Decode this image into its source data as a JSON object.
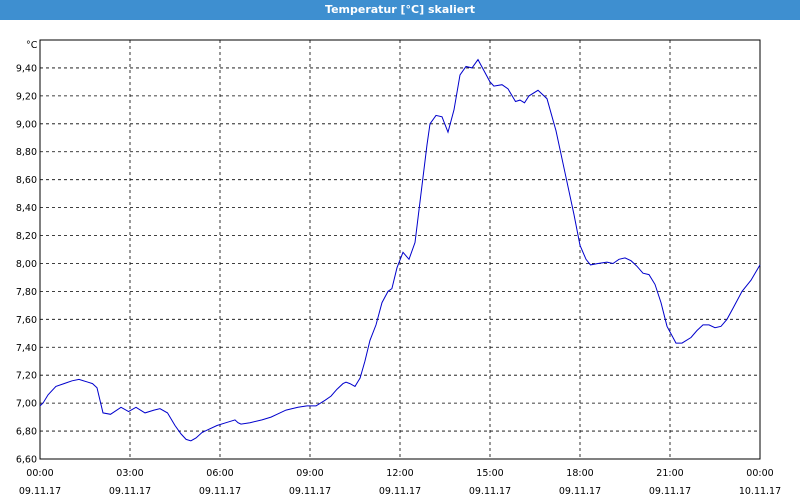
{
  "chart_data": {
    "type": "line",
    "title": "Temperatur [°C] skaliert",
    "ylabel": "°C",
    "xlabel": "",
    "ylim": [
      6.6,
      9.6
    ],
    "xlim_hours": [
      0,
      24
    ],
    "grid": true,
    "colors": {
      "line": "#0000cc",
      "title_bar": "#3e8fd0",
      "grid": "#000000"
    },
    "y_ticks": [
      "6,60",
      "6,80",
      "7,00",
      "7,20",
      "7,40",
      "7,60",
      "7,80",
      "8,00",
      "8,20",
      "8,40",
      "8,60",
      "8,80",
      "9,00",
      "9,20",
      "9,40"
    ],
    "x_ticks": [
      {
        "time": "00:00",
        "date": "09.11.17"
      },
      {
        "time": "03:00",
        "date": "09.11.17"
      },
      {
        "time": "06:00",
        "date": "09.11.17"
      },
      {
        "time": "09:00",
        "date": "09.11.17"
      },
      {
        "time": "12:00",
        "date": "09.11.17"
      },
      {
        "time": "15:00",
        "date": "09.11.17"
      },
      {
        "time": "18:00",
        "date": "09.11.17"
      },
      {
        "time": "21:00",
        "date": "09.11.17"
      },
      {
        "time": "00:00",
        "date": "10.11.17"
      }
    ],
    "series": [
      {
        "x": [
          0.0,
          0.1,
          0.27,
          0.53,
          0.8,
          1.07,
          1.3,
          1.6,
          1.75,
          1.9,
          2.1,
          2.35,
          2.7,
          2.95,
          3.2,
          3.5,
          3.8,
          4.0,
          4.25,
          4.5,
          4.7,
          4.87,
          5.03,
          5.2,
          5.4,
          5.6,
          5.9,
          6.2,
          6.35,
          6.5,
          6.6,
          6.7,
          7.0,
          7.4,
          7.7,
          7.9,
          8.2,
          8.6,
          8.9,
          9.2,
          9.5,
          9.7,
          9.9,
          10.1,
          10.2,
          10.33,
          10.5,
          10.67,
          10.83,
          11.0,
          11.2,
          11.4,
          11.6,
          11.73,
          11.9,
          12.1,
          12.3,
          12.5,
          12.7,
          12.9,
          13.0,
          13.2,
          13.4,
          13.6,
          13.8,
          14.0,
          14.2,
          14.4,
          14.6,
          14.8,
          15.0,
          15.13,
          15.4,
          15.6,
          15.85,
          16.0,
          16.15,
          16.3,
          16.6,
          16.9,
          17.2,
          17.5,
          17.8,
          18.0,
          18.2,
          18.35,
          18.6,
          18.9,
          19.1,
          19.3,
          19.5,
          19.7,
          19.9,
          20.1,
          20.3,
          20.5,
          20.7,
          20.9,
          21.2,
          21.4,
          21.7,
          21.9,
          22.1,
          22.3,
          22.5,
          22.7,
          22.9,
          23.1,
          23.4,
          23.7,
          24.0
        ],
        "y": [
          6.98,
          7.0,
          7.06,
          7.12,
          7.14,
          7.16,
          7.17,
          7.15,
          7.14,
          7.11,
          6.93,
          6.92,
          6.97,
          6.94,
          6.97,
          6.93,
          6.95,
          6.96,
          6.93,
          6.84,
          6.78,
          6.74,
          6.73,
          6.75,
          6.79,
          6.81,
          6.84,
          6.86,
          6.87,
          6.88,
          6.86,
          6.85,
          6.86,
          6.88,
          6.9,
          6.92,
          6.95,
          6.97,
          6.98,
          6.98,
          7.02,
          7.05,
          7.1,
          7.14,
          7.15,
          7.14,
          7.12,
          7.18,
          7.3,
          7.45,
          7.56,
          7.72,
          7.8,
          7.82,
          7.97,
          8.08,
          8.03,
          8.15,
          8.5,
          8.85,
          9.0,
          9.06,
          9.05,
          8.94,
          9.1,
          9.35,
          9.41,
          9.4,
          9.46,
          9.38,
          9.3,
          9.27,
          9.28,
          9.25,
          9.16,
          9.17,
          9.15,
          9.2,
          9.24,
          9.18,
          8.95,
          8.65,
          8.35,
          8.13,
          8.03,
          7.99,
          8.0,
          8.01,
          8.0,
          8.03,
          8.04,
          8.02,
          7.98,
          7.93,
          7.92,
          7.85,
          7.72,
          7.55,
          7.43,
          7.43,
          7.47,
          7.52,
          7.56,
          7.56,
          7.54,
          7.55,
          7.6,
          7.68,
          7.8,
          7.88,
          7.99
        ]
      }
    ]
  }
}
